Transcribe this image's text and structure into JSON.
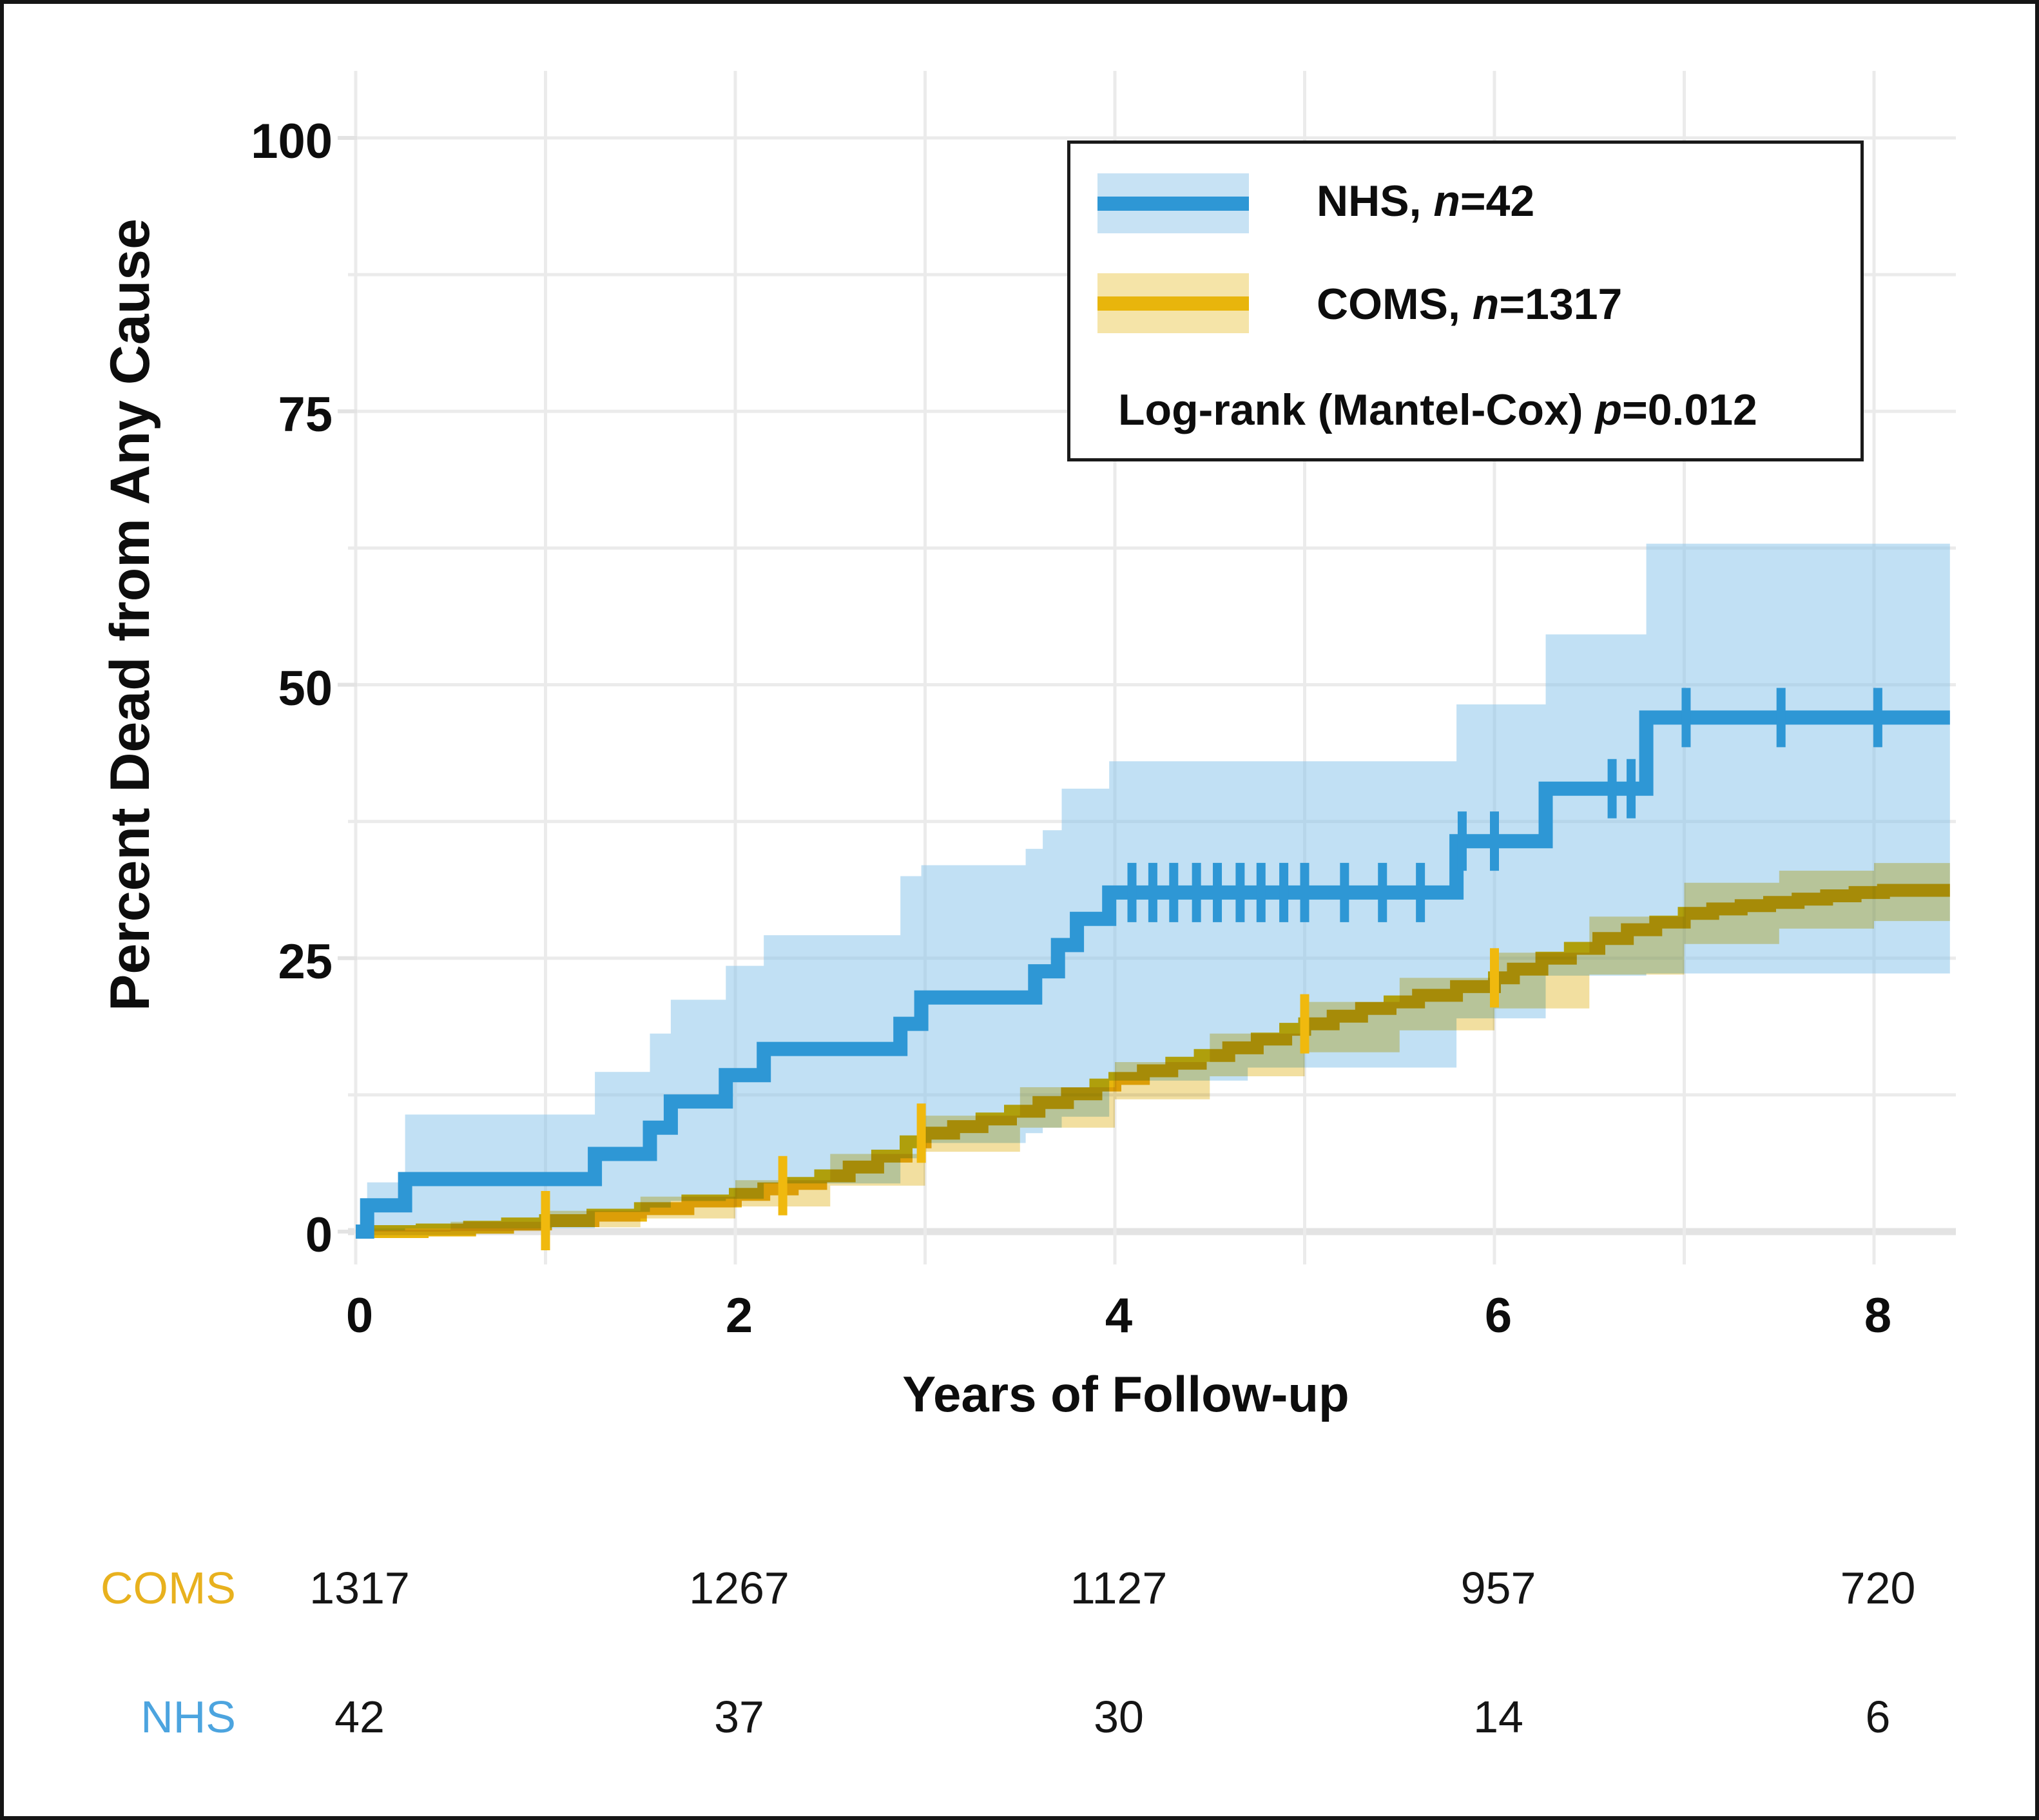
{
  "figure": {
    "kind": "Kaplan-Meier cumulative incidence plot with 95% CI bands and number-at-risk table"
  },
  "axes": {
    "y": {
      "title": "Percent Dead from Any Cause",
      "tick_labels": [
        "0",
        "25",
        "50",
        "75",
        "100"
      ],
      "tick_values": [
        0,
        25,
        50,
        75,
        100
      ]
    },
    "x": {
      "title": "Years of Follow-up",
      "tick_labels": [
        "0",
        "2",
        "4",
        "6",
        "8"
      ],
      "tick_values": [
        0,
        2,
        4,
        6,
        8
      ]
    }
  },
  "legend": {
    "items": [
      {
        "series": "NHS",
        "prefix": "NHS, ",
        "var": "n",
        "suffix": "=42",
        "line_color": "#2E97D5",
        "band_color": "#C7E2F4"
      },
      {
        "series": "COMS",
        "prefix": "COMS, ",
        "var": "n",
        "suffix": "=1317",
        "line_color": "#E8B50C",
        "band_color": "#F5E4A8"
      }
    ],
    "stat": {
      "prefix": "Log-rank (Mantel-Cox) ",
      "var": "p",
      "suffix": "=0.012"
    }
  },
  "risk_table": {
    "years": [
      0,
      2,
      4,
      6,
      8
    ],
    "rows": [
      {
        "label": "COMS",
        "label_color": "#E8B11E",
        "values": [
          "1317",
          "1267",
          "1127",
          "957",
          "720"
        ]
      },
      {
        "label": "NHS",
        "label_color": "#4CA4DF",
        "values": [
          "42",
          "37",
          "30",
          "14",
          "6"
        ]
      }
    ]
  },
  "chart_data": {
    "type": "line",
    "variant": "kaplan_meier_step_with_confidence_bands",
    "title": "",
    "xlabel": "Years of Follow-up",
    "ylabel": "Percent Dead from Any Cause",
    "xlim": [
      0,
      8.45
    ],
    "ylim": [
      0,
      100
    ],
    "x_gridline_step": 1,
    "y_gridline_step": 12.5,
    "grid": true,
    "legend_position": "top-right",
    "annotation": "Log-rank (Mantel-Cox) p=0.012",
    "series": [
      {
        "name": "NHS",
        "n": 42,
        "color": "#2E97D5",
        "band_color": "rgba(136,195,234,0.52)",
        "band_blend": "normal",
        "censor_color": "#2E97D5",
        "end_x": 8.4,
        "step": true,
        "points": [
          [
            0,
            0
          ],
          [
            0.06,
            2.4
          ],
          [
            0.26,
            4.8
          ],
          [
            1.26,
            7.1
          ],
          [
            1.55,
            9.5
          ],
          [
            1.66,
            11.9
          ],
          [
            1.95,
            14.3
          ],
          [
            2.15,
            16.7
          ],
          [
            2.87,
            19.0
          ],
          [
            2.98,
            21.4
          ],
          [
            3.58,
            23.8
          ],
          [
            3.7,
            26.2
          ],
          [
            3.8,
            28.6
          ],
          [
            3.97,
            31.0
          ],
          [
            5.8,
            35.7
          ],
          [
            6.27,
            40.5
          ],
          [
            6.8,
            47.0
          ]
        ],
        "censors": [
          [
            4.09,
            31
          ],
          [
            4.2,
            31
          ],
          [
            4.31,
            31
          ],
          [
            4.43,
            31
          ],
          [
            4.54,
            31
          ],
          [
            4.66,
            31
          ],
          [
            4.77,
            31
          ],
          [
            4.89,
            31
          ],
          [
            5.0,
            31
          ],
          [
            5.21,
            31
          ],
          [
            5.41,
            31
          ],
          [
            5.61,
            31
          ],
          [
            5.83,
            35.7
          ],
          [
            6.0,
            35.7
          ],
          [
            6.62,
            40.5
          ],
          [
            6.72,
            40.5
          ],
          [
            7.01,
            47
          ],
          [
            7.51,
            47
          ],
          [
            8.02,
            47
          ]
        ],
        "band": [
          [
            0.06,
            0.1,
            4.5
          ],
          [
            0.26,
            0.3,
            10.7
          ],
          [
            1.26,
            1.8,
            14.6
          ],
          [
            1.55,
            2.2,
            18.1
          ],
          [
            1.66,
            2.8,
            21.2
          ],
          [
            1.95,
            3.0,
            24.3
          ],
          [
            2.15,
            4.4,
            27.1
          ],
          [
            2.87,
            6.7,
            32.5
          ],
          [
            2.98,
            8.1,
            33.5
          ],
          [
            3.53,
            9.0,
            35.0
          ],
          [
            3.62,
            9.5,
            36.7
          ],
          [
            3.72,
            10.5,
            40.5
          ],
          [
            3.97,
            13.8,
            43.0
          ],
          [
            4.7,
            15.0,
            43.0
          ],
          [
            5.8,
            19.5,
            48.2
          ],
          [
            6.27,
            23.4,
            54.6
          ],
          [
            6.8,
            23.6,
            62.9
          ]
        ]
      },
      {
        "name": "COMS",
        "n": 1317,
        "color": "#E8B50C",
        "band_color": "#F2DFA0",
        "band_blend": "multiply",
        "censor_color": "#F0B90E",
        "end_x": 8.4,
        "step": true,
        "points": [
          [
            0,
            0
          ],
          [
            0.35,
            0.15
          ],
          [
            0.6,
            0.4
          ],
          [
            0.8,
            0.7
          ],
          [
            1.0,
            1.0
          ],
          [
            1.25,
            1.5
          ],
          [
            1.5,
            2.1
          ],
          [
            1.75,
            2.8
          ],
          [
            2.0,
            3.4
          ],
          [
            2.15,
            3.9
          ],
          [
            2.3,
            4.4
          ],
          [
            2.45,
            5.1
          ],
          [
            2.6,
            5.9
          ],
          [
            2.75,
            6.9
          ],
          [
            2.9,
            8.2
          ],
          [
            3.0,
            9.0
          ],
          [
            3.15,
            9.6
          ],
          [
            3.3,
            10.3
          ],
          [
            3.45,
            11.0
          ],
          [
            3.6,
            11.8
          ],
          [
            3.75,
            12.6
          ],
          [
            3.9,
            13.4
          ],
          [
            4.0,
            14.0
          ],
          [
            4.15,
            14.7
          ],
          [
            4.3,
            15.4
          ],
          [
            4.45,
            16.1
          ],
          [
            4.6,
            16.8
          ],
          [
            4.75,
            17.6
          ],
          [
            4.9,
            18.5
          ],
          [
            5.0,
            19.0
          ],
          [
            5.15,
            19.7
          ],
          [
            5.3,
            20.4
          ],
          [
            5.45,
            21.0
          ],
          [
            5.6,
            21.6
          ],
          [
            5.8,
            22.4
          ],
          [
            6.0,
            23.2
          ],
          [
            6.1,
            24.0
          ],
          [
            6.25,
            25.0
          ],
          [
            6.4,
            25.9
          ],
          [
            6.55,
            26.8
          ],
          [
            6.7,
            27.6
          ],
          [
            6.85,
            28.3
          ],
          [
            7.0,
            29.1
          ],
          [
            7.15,
            29.5
          ],
          [
            7.3,
            29.8
          ],
          [
            7.45,
            30.1
          ],
          [
            7.6,
            30.4
          ],
          [
            7.75,
            30.7
          ],
          [
            7.9,
            31.0
          ],
          [
            8.05,
            31.2
          ]
        ],
        "censors": [
          [
            1.0,
            1.0
          ],
          [
            2.25,
            4.2
          ],
          [
            2.98,
            9.0
          ],
          [
            5.0,
            19.0
          ],
          [
            6.0,
            23.2
          ]
        ],
        "band": [
          [
            0,
            0,
            0.15
          ],
          [
            0.5,
            0.05,
            0.9
          ],
          [
            1.0,
            0.4,
            1.9
          ],
          [
            1.5,
            1.2,
            3.2
          ],
          [
            2.0,
            2.3,
            4.7
          ],
          [
            2.5,
            4.2,
            7.1
          ],
          [
            3.0,
            7.3,
            10.6
          ],
          [
            3.5,
            9.5,
            13.2
          ],
          [
            4.0,
            12.1,
            15.5
          ],
          [
            4.5,
            14.2,
            18.1
          ],
          [
            5.0,
            16.4,
            21.0
          ],
          [
            5.5,
            18.4,
            23.2
          ],
          [
            6.0,
            20.4,
            25.5
          ],
          [
            6.5,
            23.5,
            28.8
          ],
          [
            7.0,
            26.3,
            31.9
          ],
          [
            7.5,
            27.7,
            33.0
          ],
          [
            8.0,
            28.4,
            33.7
          ]
        ]
      }
    ]
  }
}
